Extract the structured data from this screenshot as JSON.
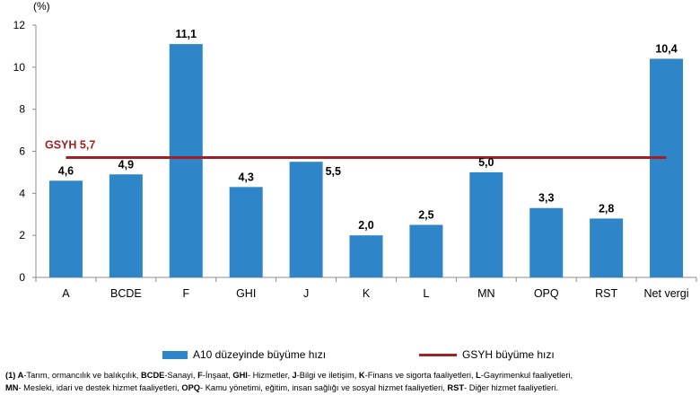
{
  "chart_data": {
    "type": "bar",
    "unit_label": "(%)",
    "categories": [
      "A",
      "BCDE",
      "F",
      "GHI",
      "J",
      "K",
      "L",
      "MN",
      "OPQ",
      "RST",
      "Net vergi"
    ],
    "series": [
      {
        "name": "A10 düzeyinde büyüme hızı",
        "values": [
          4.6,
          4.9,
          11.1,
          4.3,
          5.5,
          2.0,
          2.5,
          5.0,
          3.3,
          2.8,
          10.4
        ],
        "labels": [
          "4,6",
          "4,9",
          "11,1",
          "4,3",
          "5,5",
          "2,0",
          "2,5",
          "5,0",
          "3,3",
          "2,8",
          "10,4"
        ],
        "color": "#2e86c8"
      }
    ],
    "reference_line": {
      "name": "GSYH büyüme hızı",
      "value": 5.7,
      "label": "GSYH 5,7",
      "color": "#a31f24"
    },
    "ylim": [
      0,
      12
    ],
    "yticks": [
      "0",
      "2",
      "4",
      "6",
      "8",
      "10",
      "12"
    ],
    "grid": false,
    "legend_position": "bottom"
  },
  "legend": {
    "bar_label": "A10 düzeyinde büyüme hızı",
    "line_label": "GSYH büyüme hızı"
  },
  "footnote": {
    "line1": [
      {
        "b": "(1) A",
        "t": "-Tarım, ormancılık ve balıkçılık, "
      },
      {
        "b": "BCDE",
        "t": "-Sanayi, "
      },
      {
        "b": "F",
        "t": "-İnşaat, "
      },
      {
        "b": "GHI",
        "t": "- Hizmetler, "
      },
      {
        "b": "J",
        "t": "-Bilgi ve iletişim, "
      },
      {
        "b": "K",
        "t": "-Finans ve sigorta faaliyetleri, "
      },
      {
        "b": "L",
        "t": "-Gayrimenkul faaliyetleri,"
      }
    ],
    "line2": [
      {
        "b": "MN",
        "t": "- Mesleki, idari ve destek hizmet faaliyetleri, "
      },
      {
        "b": "OPQ",
        "t": "- Kamu yönetimi, eğitim, insan sağlığı ve sosyal hizmet faaliyetleri, "
      },
      {
        "b": "RST",
        "t": "- Diğer hizmet faaliyetleri."
      }
    ]
  }
}
